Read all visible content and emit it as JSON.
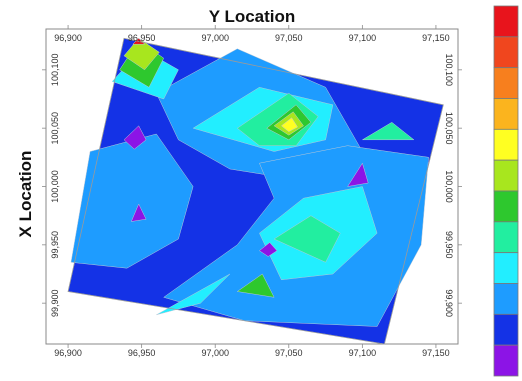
{
  "chart_data": {
    "type": "heatmap",
    "xlabel": "Y Location",
    "ylabel": "X Location",
    "x_ticks": [
      "96,900",
      "96,950",
      "97,000",
      "97,050",
      "97,100",
      "97,150"
    ],
    "x_tick_values": [
      96900,
      96950,
      97000,
      97050,
      97100,
      97150
    ],
    "y_ticks": [
      "99,900",
      "99,950",
      "100,000",
      "100,050",
      "100,100"
    ],
    "y_tick_values": [
      99900,
      99950,
      100000,
      100050,
      100100
    ],
    "xlim": [
      96885,
      97165
    ],
    "ylim": [
      99865,
      100135
    ],
    "grid": false,
    "legend": "right",
    "colorbar": [
      "#e8141c",
      "#f0461e",
      "#f77f1e",
      "#fbb41e",
      "#ffff22",
      "#a8e61e",
      "#2ec82e",
      "#22eea0",
      "#22eeff",
      "#1e9cff",
      "#1432e6",
      "#8c14e6"
    ],
    "boundary_polygon": [
      [
        96900,
        99910
      ],
      [
        96938,
        100127
      ],
      [
        97155,
        100070
      ],
      [
        97115,
        99865
      ]
    ],
    "zones": [
      {
        "color": "#1432e6",
        "points": [
          [
            96900,
            99910
          ],
          [
            96938,
            100127
          ],
          [
            97155,
            100070
          ],
          [
            97115,
            99865
          ]
        ]
      },
      {
        "color": "#1e9cff",
        "points": [
          [
            96902,
            99935
          ],
          [
            96915,
            100030
          ],
          [
            96960,
            100045
          ],
          [
            96985,
            100000
          ],
          [
            96975,
            99955
          ],
          [
            96940,
            99930
          ]
        ]
      },
      {
        "color": "#1e9cff",
        "points": [
          [
            96960,
            100080
          ],
          [
            97015,
            100118
          ],
          [
            97075,
            100085
          ],
          [
            97100,
            100030
          ],
          [
            97060,
            100005
          ],
          [
            97010,
            100015
          ],
          [
            96975,
            100040
          ]
        ]
      },
      {
        "color": "#1e9cff",
        "points": [
          [
            96965,
            99905
          ],
          [
            97015,
            99950
          ],
          [
            97040,
            99990
          ],
          [
            97030,
            100020
          ],
          [
            97090,
            100035
          ],
          [
            97145,
            100025
          ],
          [
            97140,
            99950
          ],
          [
            97110,
            99880
          ],
          [
            97020,
            99885
          ]
        ]
      },
      {
        "color": "#22eeff",
        "points": [
          [
            96985,
            100050
          ],
          [
            97030,
            100085
          ],
          [
            97080,
            100070
          ],
          [
            97075,
            100040
          ],
          [
            97040,
            100030
          ]
        ]
      },
      {
        "color": "#22eeff",
        "points": [
          [
            97030,
            99960
          ],
          [
            97060,
            99990
          ],
          [
            97100,
            100000
          ],
          [
            97110,
            99960
          ],
          [
            97080,
            99925
          ],
          [
            97045,
            99920
          ]
        ]
      },
      {
        "color": "#22eeff",
        "points": [
          [
            96960,
            99890
          ],
          [
            97010,
            99925
          ],
          [
            96990,
            99900
          ]
        ]
      },
      {
        "color": "#22eeff",
        "points": [
          [
            96930,
            100090
          ],
          [
            96950,
            100118
          ],
          [
            96975,
            100100
          ],
          [
            96965,
            100075
          ]
        ]
      },
      {
        "color": "#22eea0",
        "points": [
          [
            97015,
            100050
          ],
          [
            97050,
            100080
          ],
          [
            97070,
            100060
          ],
          [
            97055,
            100035
          ],
          [
            97030,
            100035
          ]
        ]
      },
      {
        "color": "#22eea0",
        "points": [
          [
            97040,
            99955
          ],
          [
            97065,
            99975
          ],
          [
            97085,
            99960
          ],
          [
            97075,
            99935
          ]
        ]
      },
      {
        "color": "#22eea0",
        "points": [
          [
            97100,
            100040
          ],
          [
            97120,
            100055
          ],
          [
            97135,
            100040
          ]
        ]
      },
      {
        "color": "#2ec82e",
        "points": [
          [
            96935,
            100100
          ],
          [
            96948,
            100125
          ],
          [
            96965,
            100110
          ],
          [
            96955,
            100085
          ]
        ]
      },
      {
        "color": "#2ec82e",
        "points": [
          [
            97035,
            100050
          ],
          [
            97055,
            100070
          ],
          [
            97065,
            100055
          ],
          [
            97050,
            100040
          ]
        ]
      },
      {
        "color": "#2ec82e",
        "points": [
          [
            97015,
            99910
          ],
          [
            97032,
            99925
          ],
          [
            97040,
            99905
          ]
        ]
      },
      {
        "color": "#a8e61e",
        "points": [
          [
            96938,
            100112
          ],
          [
            96948,
            100127
          ],
          [
            96962,
            100115
          ],
          [
            96952,
            100100
          ]
        ]
      },
      {
        "color": "#a8e61e",
        "points": [
          [
            97040,
            100052
          ],
          [
            97053,
            100064
          ],
          [
            97060,
            100052
          ],
          [
            97050,
            100044
          ]
        ]
      },
      {
        "color": "#ffff22",
        "points": [
          [
            97045,
            100052
          ],
          [
            97052,
            100059
          ],
          [
            97056,
            100051
          ],
          [
            97050,
            100047
          ]
        ]
      },
      {
        "color": "#8c14e6",
        "points": [
          [
            96938,
            100040
          ],
          [
            96948,
            100052
          ],
          [
            96953,
            100040
          ],
          [
            96945,
            100032
          ]
        ]
      },
      {
        "color": "#8c14e6",
        "points": [
          [
            96943,
            99970
          ],
          [
            96948,
            99985
          ],
          [
            96953,
            99972
          ]
        ]
      },
      {
        "color": "#8c14e6",
        "points": [
          [
            97090,
            100000
          ],
          [
            97100,
            100020
          ],
          [
            97104,
            100003
          ]
        ]
      },
      {
        "color": "#8c14e6",
        "points": [
          [
            97030,
            99945
          ],
          [
            97037,
            99952
          ],
          [
            97042,
            99945
          ],
          [
            97036,
            99940
          ]
        ]
      },
      {
        "color": "#e8141c",
        "points": [
          [
            96944,
            100122
          ],
          [
            96948,
            100127
          ],
          [
            96952,
            100122
          ]
        ]
      }
    ]
  }
}
